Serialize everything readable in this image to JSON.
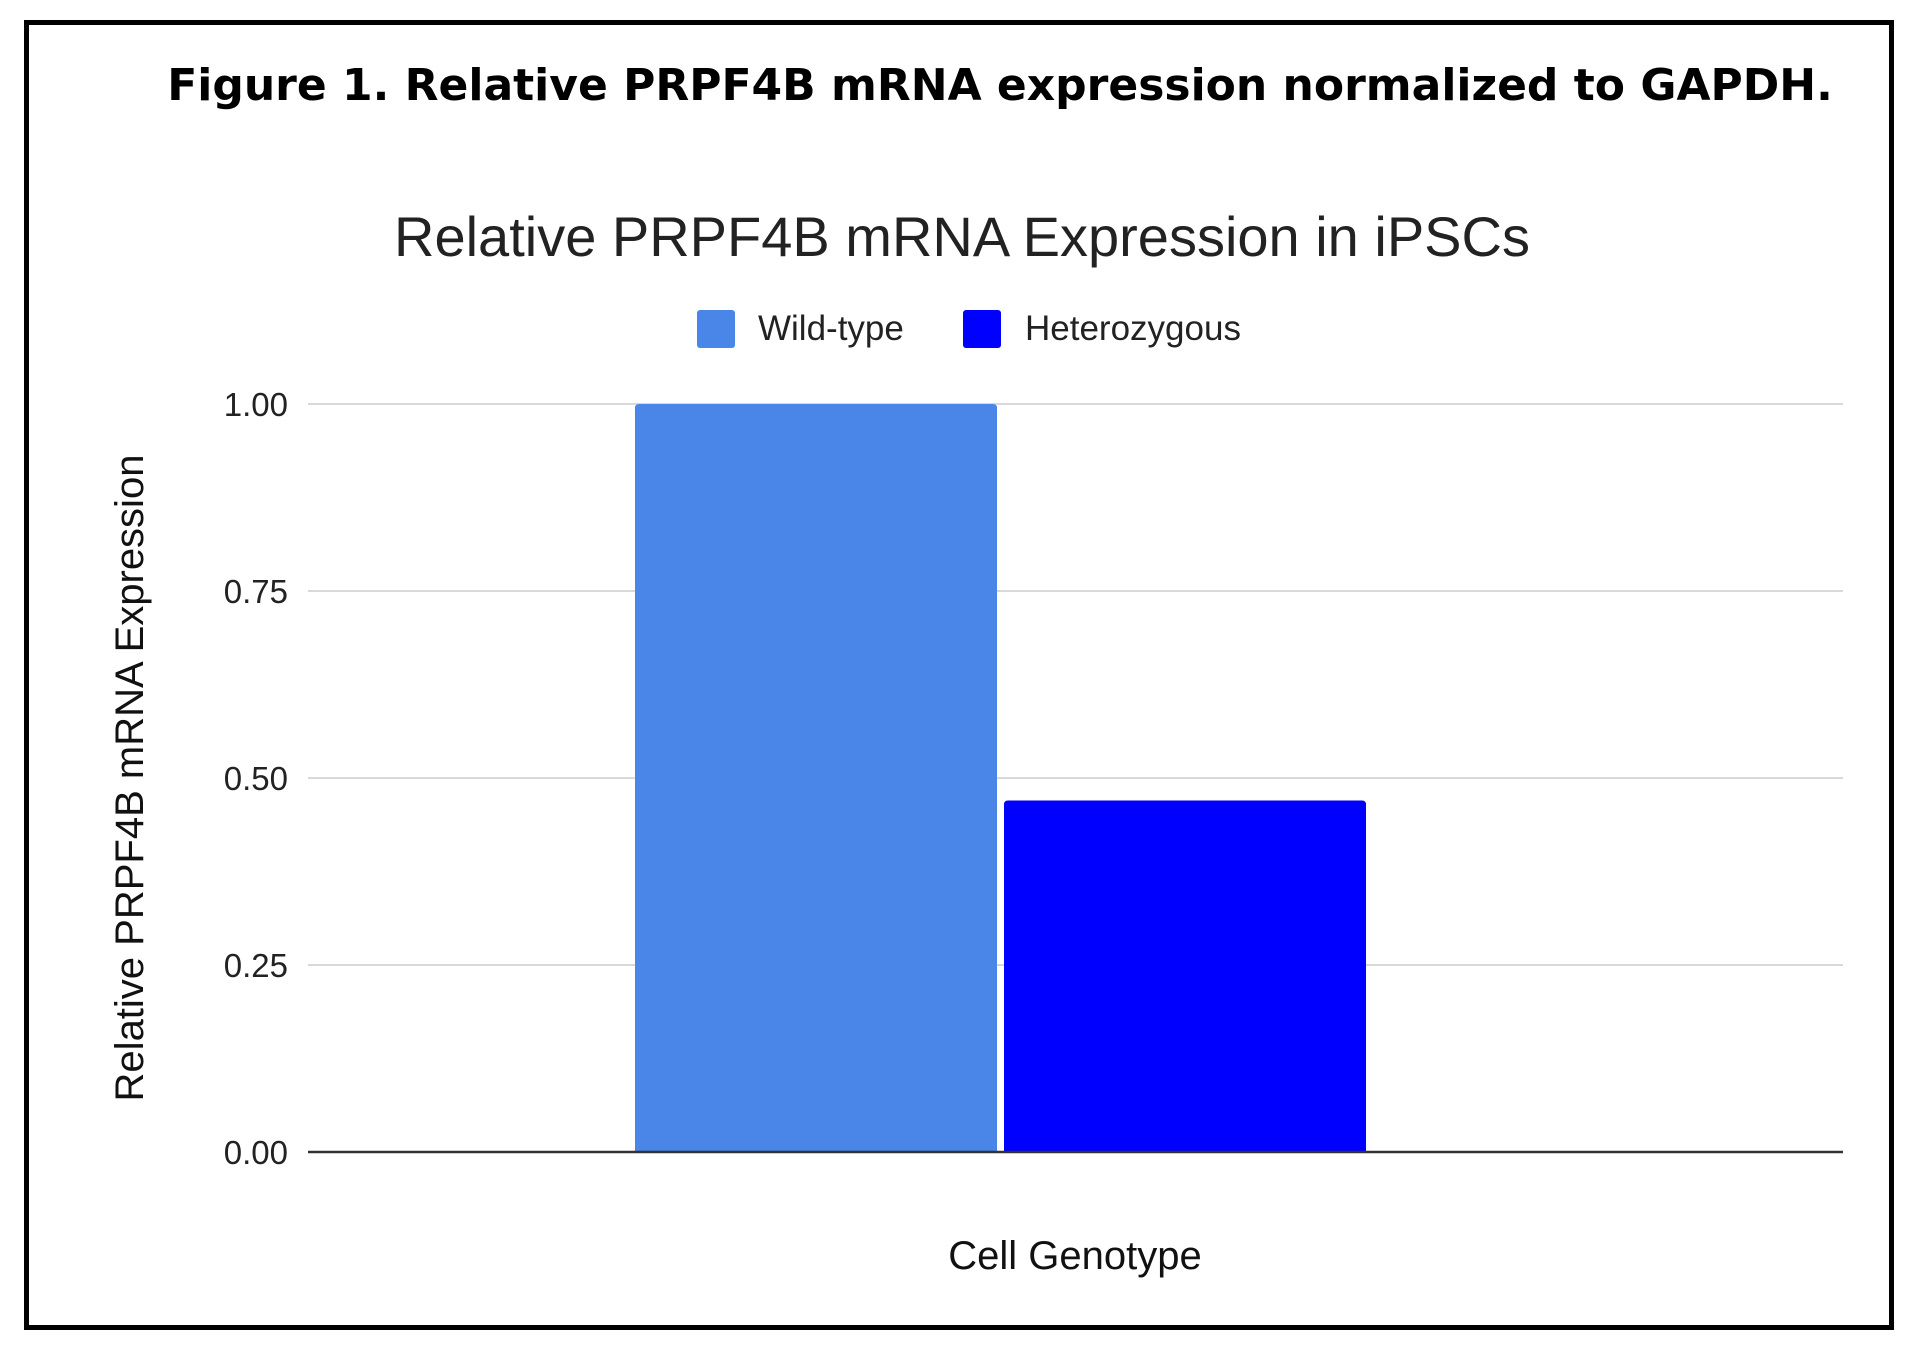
{
  "figure_caption": "Figure 1. Relative PRPF4B mRNA expression normalized to GAPDH.",
  "chart_data": {
    "type": "bar",
    "title": "Relative PRPF4B mRNA Expression in iPSCs",
    "xlabel": "Cell Genotype",
    "ylabel": "Relative PRPF4B mRNA Expression",
    "categories": [
      ""
    ],
    "series": [
      {
        "name": "Wild-type",
        "values": [
          1.0
        ],
        "color": "#4a86e8"
      },
      {
        "name": "Heterozygous",
        "values": [
          0.47
        ],
        "color": "#0000ff"
      }
    ],
    "ylim": [
      0,
      1
    ],
    "yticks": [
      0,
      0.25,
      0.5,
      0.75,
      1.0
    ],
    "ytick_labels": [
      "0.00",
      "0.25",
      "0.50",
      "0.75",
      "1.00"
    ],
    "grid": true,
    "legend_position": "top-center",
    "gridline_color": "#d9d9d9",
    "axis_color": "#333333"
  }
}
